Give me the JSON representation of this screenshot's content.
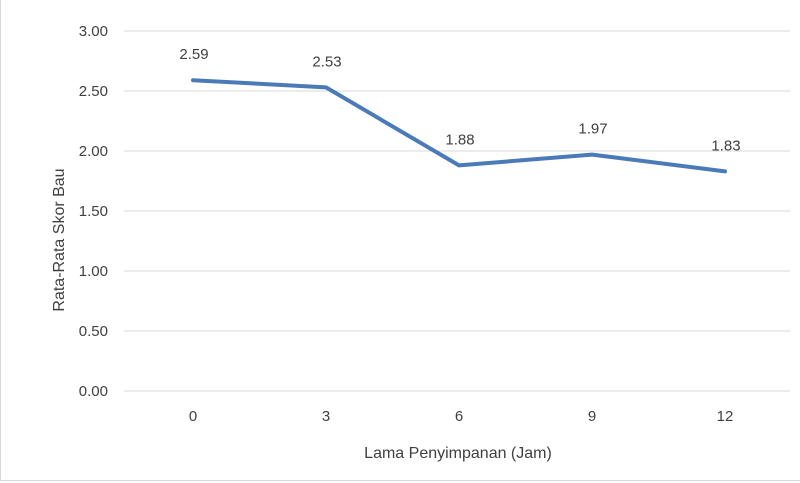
{
  "chart_data": {
    "type": "line",
    "categories": [
      "0",
      "3",
      "6",
      "9",
      "12"
    ],
    "series": [
      {
        "values": [
          2.59,
          2.53,
          1.88,
          1.97,
          1.83
        ]
      }
    ],
    "data_labels": [
      "2.59",
      "2.53",
      "1.88",
      "1.97",
      "1.83"
    ],
    "y_ticks": [
      "0.00",
      "0.50",
      "1.00",
      "1.50",
      "2.00",
      "2.50",
      "3.00"
    ],
    "title": "",
    "xlabel": "Lama Penyimpanan (Jam)",
    "ylabel": "Rata-Rata Skor Bau",
    "ylim": [
      0,
      3
    ],
    "grid": true,
    "line_color": "#4a7ab8",
    "grid_color": "#d9d9d9",
    "text_color": "#404040"
  }
}
